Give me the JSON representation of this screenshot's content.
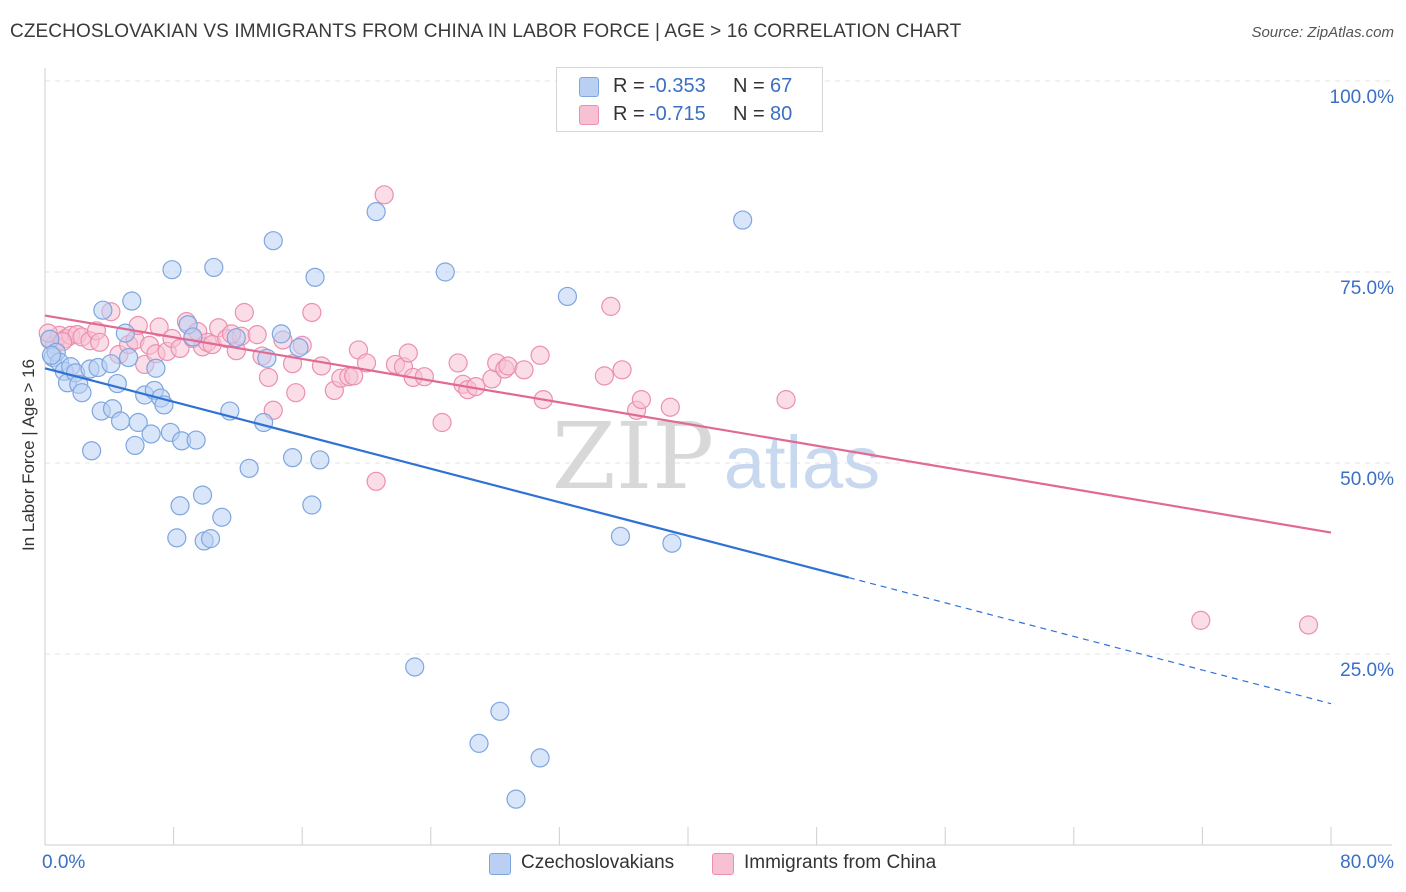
{
  "header": {
    "title": "CZECHOSLOVAKIAN VS IMMIGRANTS FROM CHINA IN LABOR FORCE | AGE > 16 CORRELATION CHART",
    "source": "Source: ZipAtlas.com"
  },
  "stats": {
    "series_a": {
      "r_label": "R =",
      "r_value": "-0.353",
      "n_label": "N =",
      "n_value": "67"
    },
    "series_b": {
      "r_label": "R =",
      "r_value": "-0.715",
      "n_label": "N =",
      "n_value": "80"
    }
  },
  "legend": {
    "series_a": "Czechoslovakians",
    "series_b": "Immigrants from China"
  },
  "watermark": {
    "zip": "ZIP",
    "atlas": "atlas"
  },
  "colors": {
    "blue_fill": "#b9d0f2",
    "blue_stroke": "#7ea6e0",
    "blue_line": "#2f72d4",
    "pink_fill": "#f7c1d3",
    "pink_stroke": "#ec8fb0",
    "pink_line": "#e06a94",
    "grid": "#e3e3e3",
    "axis_text": "#3b6fc4"
  },
  "chart_data": {
    "type": "scatter",
    "title": "CZECHOSLOVAKIAN VS IMMIGRANTS FROM CHINA IN LABOR FORCE | AGE > 16 CORRELATION CHART",
    "xlabel": "",
    "ylabel": "In Labor Force | Age > 16",
    "xlim": [
      0,
      80
    ],
    "ylim": [
      0,
      100
    ],
    "x_tick_labels": [
      "0.0%",
      "80.0%"
    ],
    "y_ticks": [
      25,
      50,
      75,
      100
    ],
    "y_tick_labels": [
      "25.0%",
      "50.0%",
      "75.0%",
      "100.0%"
    ],
    "grid": true,
    "series": [
      {
        "name": "Czechoslovakians",
        "color": "blue",
        "trend": {
          "x_start": 0,
          "y_start": 62.4,
          "x_end_solid": 50,
          "y_end_solid": 35.0,
          "x_end": 80,
          "y_end": 18.5
        },
        "points": [
          [
            0.3,
            66.2
          ],
          [
            0.5,
            63.8
          ],
          [
            0.7,
            64.5
          ],
          [
            0.9,
            63.2
          ],
          [
            1.2,
            62.0
          ],
          [
            1.4,
            60.5
          ],
          [
            1.6,
            62.6
          ],
          [
            1.9,
            61.8
          ],
          [
            2.1,
            60.3
          ],
          [
            2.3,
            59.2
          ],
          [
            2.8,
            62.3
          ],
          [
            2.9,
            51.6
          ],
          [
            3.3,
            62.5
          ],
          [
            3.5,
            56.8
          ],
          [
            3.6,
            70.0
          ],
          [
            4.1,
            63.0
          ],
          [
            4.2,
            57.1
          ],
          [
            4.5,
            60.4
          ],
          [
            4.7,
            55.5
          ],
          [
            5.0,
            67.0
          ],
          [
            5.2,
            63.8
          ],
          [
            5.4,
            71.2
          ],
          [
            5.6,
            52.3
          ],
          [
            5.8,
            55.3
          ],
          [
            6.2,
            58.9
          ],
          [
            6.6,
            53.8
          ],
          [
            6.8,
            59.5
          ],
          [
            6.9,
            62.4
          ],
          [
            7.2,
            58.5
          ],
          [
            7.4,
            57.6
          ],
          [
            7.8,
            54.0
          ],
          [
            7.9,
            75.3
          ],
          [
            8.2,
            40.2
          ],
          [
            8.4,
            44.4
          ],
          [
            8.5,
            52.9
          ],
          [
            8.9,
            68.1
          ],
          [
            9.2,
            66.5
          ],
          [
            9.4,
            53.0
          ],
          [
            9.8,
            45.8
          ],
          [
            9.9,
            39.8
          ],
          [
            10.3,
            40.1
          ],
          [
            10.5,
            75.6
          ],
          [
            11.0,
            42.9
          ],
          [
            11.5,
            56.8
          ],
          [
            11.9,
            66.4
          ],
          [
            12.7,
            49.3
          ],
          [
            13.6,
            55.3
          ],
          [
            13.8,
            63.7
          ],
          [
            14.2,
            79.1
          ],
          [
            14.7,
            66.9
          ],
          [
            15.4,
            50.7
          ],
          [
            15.8,
            65.1
          ],
          [
            16.6,
            44.5
          ],
          [
            16.8,
            74.3
          ],
          [
            17.1,
            50.4
          ],
          [
            20.6,
            82.9
          ],
          [
            23.0,
            23.3
          ],
          [
            24.9,
            75.0
          ],
          [
            27.0,
            13.3
          ],
          [
            28.3,
            17.5
          ],
          [
            29.3,
            6.0
          ],
          [
            30.8,
            11.4
          ],
          [
            32.5,
            71.8
          ],
          [
            35.8,
            40.4
          ],
          [
            39.0,
            39.5
          ],
          [
            43.4,
            81.8
          ],
          [
            0.4,
            64.1
          ]
        ]
      },
      {
        "name": "Immigrants from China",
        "color": "pink",
        "trend": {
          "x_start": 0,
          "y_start": 69.3,
          "x_end": 80,
          "y_end": 40.9
        },
        "points": [
          [
            0.3,
            66.1
          ],
          [
            0.6,
            65.5
          ],
          [
            0.9,
            66.7
          ],
          [
            1.3,
            66.3
          ],
          [
            1.6,
            66.7
          ],
          [
            2.0,
            66.8
          ],
          [
            2.3,
            66.5
          ],
          [
            2.8,
            66.0
          ],
          [
            3.2,
            67.3
          ],
          [
            3.4,
            65.8
          ],
          [
            4.1,
            69.8
          ],
          [
            4.6,
            64.2
          ],
          [
            5.2,
            65.5
          ],
          [
            5.6,
            66.1
          ],
          [
            6.2,
            62.9
          ],
          [
            6.5,
            65.4
          ],
          [
            6.9,
            64.3
          ],
          [
            7.1,
            67.8
          ],
          [
            7.6,
            64.6
          ],
          [
            7.9,
            66.3
          ],
          [
            8.4,
            65.0
          ],
          [
            8.8,
            68.5
          ],
          [
            9.2,
            66.3
          ],
          [
            9.5,
            67.2
          ],
          [
            9.8,
            65.2
          ],
          [
            10.1,
            65.8
          ],
          [
            10.4,
            65.5
          ],
          [
            10.8,
            67.7
          ],
          [
            11.3,
            66.3
          ],
          [
            11.9,
            64.7
          ],
          [
            12.2,
            66.6
          ],
          [
            12.4,
            69.7
          ],
          [
            13.2,
            66.8
          ],
          [
            13.5,
            64.0
          ],
          [
            13.9,
            61.2
          ],
          [
            14.2,
            56.9
          ],
          [
            14.8,
            66.1
          ],
          [
            15.4,
            63.0
          ],
          [
            15.6,
            59.2
          ],
          [
            16.0,
            65.4
          ],
          [
            16.6,
            69.7
          ],
          [
            17.2,
            62.7
          ],
          [
            18.0,
            59.5
          ],
          [
            18.4,
            61.1
          ],
          [
            18.9,
            61.3
          ],
          [
            19.2,
            61.4
          ],
          [
            19.5,
            64.8
          ],
          [
            20.0,
            63.1
          ],
          [
            20.6,
            47.6
          ],
          [
            21.1,
            85.1
          ],
          [
            21.8,
            62.9
          ],
          [
            22.3,
            62.6
          ],
          [
            22.6,
            64.4
          ],
          [
            22.9,
            61.2
          ],
          [
            23.6,
            61.3
          ],
          [
            24.7,
            55.3
          ],
          [
            25.7,
            63.1
          ],
          [
            26.0,
            60.3
          ],
          [
            26.3,
            59.6
          ],
          [
            26.8,
            60.0
          ],
          [
            27.8,
            61.0
          ],
          [
            28.1,
            63.1
          ],
          [
            28.6,
            62.3
          ],
          [
            28.8,
            62.7
          ],
          [
            29.8,
            62.2
          ],
          [
            30.8,
            64.1
          ],
          [
            31.0,
            58.3
          ],
          [
            34.8,
            61.4
          ],
          [
            35.2,
            70.5
          ],
          [
            35.9,
            62.2
          ],
          [
            36.8,
            56.9
          ],
          [
            37.1,
            58.3
          ],
          [
            38.9,
            57.3
          ],
          [
            46.1,
            58.3
          ],
          [
            0.2,
            67.0
          ],
          [
            1.1,
            65.9
          ],
          [
            71.9,
            29.4
          ],
          [
            78.6,
            28.8
          ],
          [
            5.8,
            68.0
          ],
          [
            11.6,
            66.9
          ]
        ]
      }
    ]
  }
}
